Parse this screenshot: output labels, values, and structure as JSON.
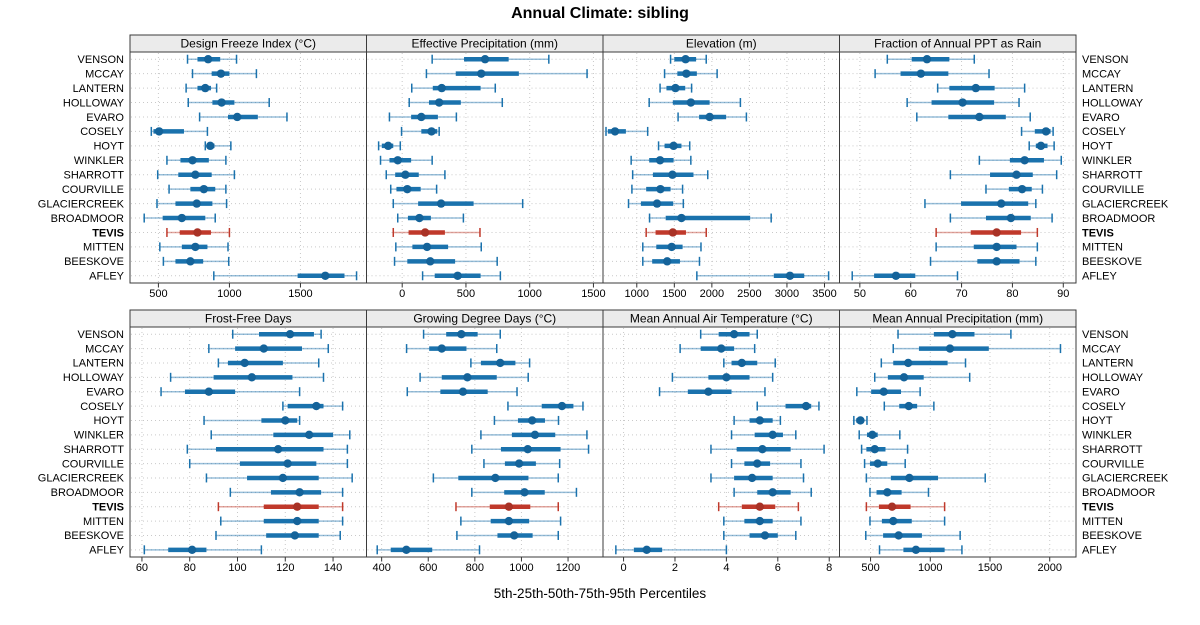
{
  "title": "Annual Climate: sibling",
  "caption": "5th-25th-50th-75th-95th Percentiles",
  "colors": {
    "primary": "#1a72ad",
    "primary_dot": "#14639a",
    "highlight": "#c0392b",
    "highlight_dot": "#a93226",
    "strip_bg": "#ebebeb",
    "panel_border": "#3b3b3b",
    "grid": "#c9c9c9",
    "tick": "#333333",
    "text": "#000000"
  },
  "highlighted_station": "TEVIS",
  "chart_data": {
    "type": "dotplot-percentiles",
    "percentiles": [
      5,
      25,
      50,
      75,
      95
    ],
    "stations": [
      "VENSON",
      "MCCAY",
      "LANTERN",
      "HOLLOWAY",
      "EVARO",
      "COSELY",
      "HOYT",
      "WINKLER",
      "SHARROTT",
      "COURVILLE",
      "GLACIERCREEK",
      "BROADMOOR",
      "TEVIS",
      "MITTEN",
      "BEESKOVE",
      "AFLEY"
    ],
    "panels": [
      {
        "title": "Design Freeze Index (°C)",
        "xlim": [
          300,
          1965
        ],
        "ticks": [
          500,
          1000,
          1500
        ],
        "series": [
          [
            705,
            775,
            850,
            935,
            1050
          ],
          [
            740,
            875,
            940,
            1000,
            1190
          ],
          [
            695,
            775,
            830,
            870,
            910
          ],
          [
            710,
            880,
            945,
            1035,
            1280
          ],
          [
            790,
            990,
            1055,
            1200,
            1405
          ],
          [
            450,
            465,
            505,
            680,
            845
          ],
          [
            830,
            845,
            865,
            895,
            1010
          ],
          [
            560,
            655,
            740,
            855,
            975
          ],
          [
            495,
            640,
            760,
            875,
            1035
          ],
          [
            575,
            725,
            820,
            900,
            975
          ],
          [
            490,
            620,
            770,
            880,
            980
          ],
          [
            400,
            530,
            665,
            830,
            900
          ],
          [
            560,
            650,
            775,
            870,
            1000
          ],
          [
            510,
            665,
            760,
            845,
            990
          ],
          [
            535,
            620,
            725,
            815,
            995
          ],
          [
            890,
            1480,
            1675,
            1810,
            1895
          ]
        ]
      },
      {
        "title": "Effective Precipitation (mm)",
        "xlim": [
          -280,
          1575
        ],
        "ticks": [
          0,
          500,
          1000,
          1500
        ],
        "series": [
          [
            235,
            485,
            650,
            835,
            1150
          ],
          [
            190,
            420,
            620,
            915,
            1450
          ],
          [
            75,
            240,
            310,
            615,
            730
          ],
          [
            55,
            210,
            290,
            460,
            785
          ],
          [
            -100,
            70,
            150,
            280,
            425
          ],
          [
            -5,
            150,
            230,
            275,
            290
          ],
          [
            -185,
            -160,
            -110,
            -70,
            -15
          ],
          [
            -170,
            -100,
            -35,
            70,
            235
          ],
          [
            -125,
            -55,
            25,
            130,
            335
          ],
          [
            -90,
            -45,
            40,
            145,
            270
          ],
          [
            -70,
            125,
            305,
            560,
            945
          ],
          [
            -35,
            45,
            135,
            225,
            480
          ],
          [
            -70,
            50,
            180,
            335,
            610
          ],
          [
            -50,
            80,
            195,
            360,
            620
          ],
          [
            -60,
            40,
            220,
            415,
            745
          ],
          [
            160,
            255,
            435,
            615,
            770
          ]
        ]
      },
      {
        "title": "Elevation (m)",
        "xlim": [
          550,
          3700
        ],
        "ticks": [
          1000,
          1500,
          2000,
          2500,
          3000,
          3500
        ],
        "series": [
          [
            1450,
            1500,
            1650,
            1790,
            1925
          ],
          [
            1370,
            1540,
            1660,
            1800,
            2070
          ],
          [
            1310,
            1395,
            1515,
            1645,
            1730
          ],
          [
            1165,
            1480,
            1720,
            1970,
            2380
          ],
          [
            1550,
            1830,
            1970,
            2190,
            2460
          ],
          [
            590,
            615,
            710,
            855,
            1145
          ],
          [
            1290,
            1370,
            1490,
            1595,
            1705
          ],
          [
            925,
            1165,
            1310,
            1490,
            1720
          ],
          [
            945,
            1215,
            1475,
            1755,
            1945
          ],
          [
            935,
            1125,
            1315,
            1450,
            1610
          ],
          [
            890,
            1055,
            1270,
            1485,
            1620
          ],
          [
            1170,
            1385,
            1595,
            2510,
            2790
          ],
          [
            1125,
            1250,
            1480,
            1655,
            1925
          ],
          [
            1080,
            1260,
            1465,
            1610,
            1855
          ],
          [
            1080,
            1205,
            1405,
            1575,
            1835
          ],
          [
            1800,
            2825,
            3040,
            3230,
            3555
          ]
        ]
      },
      {
        "title": "Fraction of Annual PPT as Rain",
        "xlim": [
          46,
          92.5
        ],
        "ticks": [
          50,
          60,
          70,
          80,
          90
        ],
        "series": [
          [
            55.4,
            60.2,
            63.2,
            67.6,
            72.5
          ],
          [
            53.0,
            58.0,
            62.0,
            67.4,
            75.4
          ],
          [
            65.3,
            67.6,
            72.8,
            76.5,
            82.4
          ],
          [
            59.3,
            64.1,
            70.2,
            76.4,
            81.3
          ],
          [
            61.2,
            67.4,
            73.5,
            78.7,
            83.5
          ],
          [
            81.8,
            84.4,
            86.6,
            87.5,
            88.0
          ],
          [
            83.3,
            84.6,
            85.6,
            86.9,
            88.2
          ],
          [
            73.5,
            79.5,
            82.4,
            86.2,
            89.6
          ],
          [
            67.8,
            75.6,
            80.8,
            84.0,
            88.7
          ],
          [
            74.8,
            79.3,
            81.9,
            83.8,
            85.9
          ],
          [
            62.8,
            69.9,
            77.8,
            83.1,
            84.6
          ],
          [
            67.8,
            74.8,
            79.7,
            83.6,
            87.8
          ],
          [
            65.0,
            71.8,
            76.9,
            81.7,
            84.9
          ],
          [
            65.0,
            72.4,
            76.9,
            80.8,
            84.9
          ],
          [
            63.9,
            73.1,
            76.9,
            81.4,
            84.6
          ],
          [
            48.5,
            52.8,
            57.1,
            60.9,
            69.2
          ]
        ]
      },
      {
        "title": "Frost-Free Days",
        "xlim": [
          55,
          154
        ],
        "ticks": [
          60,
          80,
          100,
          120,
          140
        ],
        "series": [
          [
            98,
            109,
            122,
            132,
            135
          ],
          [
            88,
            99,
            111,
            127,
            138
          ],
          [
            92,
            96,
            103,
            119,
            134
          ],
          [
            72,
            90,
            106,
            123,
            136
          ],
          [
            68,
            78,
            88,
            99,
            126
          ],
          [
            119,
            121,
            133,
            136,
            144
          ],
          [
            86,
            110,
            120,
            125,
            126
          ],
          [
            89,
            115,
            130,
            140,
            147
          ],
          [
            79,
            91,
            117,
            136,
            146
          ],
          [
            80,
            101,
            121,
            133,
            146
          ],
          [
            87,
            104,
            119,
            134,
            148
          ],
          [
            97,
            114,
            126,
            135,
            144
          ],
          [
            92,
            111,
            125,
            134,
            144
          ],
          [
            93,
            111,
            125,
            134,
            144
          ],
          [
            91,
            112,
            124,
            134,
            143
          ],
          [
            61,
            71,
            81,
            87,
            110
          ]
        ]
      },
      {
        "title": "Growing Degree Days (°C)",
        "xlim": [
          335,
          1350
        ],
        "ticks": [
          400,
          600,
          800,
          1000,
          1200
        ],
        "series": [
          [
            580,
            677,
            742,
            812,
            909
          ],
          [
            507,
            604,
            658,
            764,
            894
          ],
          [
            783,
            826,
            909,
            974,
            1035
          ],
          [
            565,
            658,
            768,
            894,
            1029
          ],
          [
            510,
            652,
            749,
            855,
            981
          ],
          [
            942,
            1087,
            1174,
            1223,
            1264
          ],
          [
            884,
            985,
            1046,
            1101,
            1159
          ],
          [
            826,
            959,
            1058,
            1145,
            1281
          ],
          [
            787,
            912,
            1027,
            1168,
            1288
          ],
          [
            839,
            929,
            990,
            1062,
            1164
          ],
          [
            622,
            729,
            888,
            1030,
            1158
          ],
          [
            787,
            926,
            1013,
            1100,
            1236
          ],
          [
            719,
            864,
            946,
            1038,
            1158
          ],
          [
            740,
            868,
            946,
            1033,
            1168
          ],
          [
            723,
            897,
            969,
            1048,
            1158
          ],
          [
            381,
            439,
            506,
            617,
            820
          ]
        ]
      },
      {
        "title": "Mean Annual Air Temperature (°C)",
        "xlim": [
          -0.8,
          8.4
        ],
        "ticks": [
          0,
          2,
          4,
          6,
          8
        ],
        "series": [
          [
            3.0,
            3.7,
            4.3,
            4.9,
            5.2
          ],
          [
            2.2,
            3.0,
            3.8,
            4.3,
            5.1
          ],
          [
            3.9,
            4.2,
            4.6,
            5.2,
            5.9
          ],
          [
            1.9,
            3.3,
            4.0,
            4.9,
            5.8
          ],
          [
            1.4,
            2.5,
            3.3,
            4.2,
            5.5
          ],
          [
            5.2,
            6.3,
            7.1,
            7.3,
            7.6
          ],
          [
            4.3,
            4.9,
            5.3,
            5.8,
            6.1
          ],
          [
            4.2,
            5.1,
            5.8,
            6.2,
            6.7
          ],
          [
            3.4,
            4.4,
            5.4,
            6.5,
            7.8
          ],
          [
            4.2,
            4.7,
            5.2,
            5.7,
            6.9
          ],
          [
            3.4,
            4.3,
            5.0,
            5.8,
            7.0
          ],
          [
            4.3,
            5.2,
            5.8,
            6.5,
            7.3
          ],
          [
            3.7,
            4.6,
            5.3,
            5.9,
            6.8
          ],
          [
            3.9,
            4.7,
            5.3,
            5.8,
            6.9
          ],
          [
            3.9,
            4.9,
            5.5,
            6.0,
            6.7
          ],
          [
            -0.3,
            0.4,
            0.9,
            1.5,
            4.0
          ]
        ]
      },
      {
        "title": "Mean Annual Precipitation (mm)",
        "xlim": [
          240,
          2220
        ],
        "ticks": [
          500,
          1000,
          1500,
          2000
        ],
        "series": [
          [
            730,
            1030,
            1185,
            1370,
            1675
          ],
          [
            690,
            905,
            1165,
            1490,
            2090
          ],
          [
            590,
            690,
            815,
            1145,
            1295
          ],
          [
            535,
            645,
            780,
            945,
            1330
          ],
          [
            385,
            505,
            610,
            755,
            915
          ],
          [
            615,
            740,
            820,
            890,
            1030
          ],
          [
            360,
            380,
            415,
            445,
            470
          ],
          [
            405,
            470,
            515,
            560,
            745
          ],
          [
            425,
            465,
            535,
            625,
            810
          ],
          [
            450,
            495,
            560,
            640,
            790
          ],
          [
            465,
            670,
            825,
            1065,
            1460
          ],
          [
            495,
            550,
            640,
            760,
            985
          ],
          [
            465,
            570,
            680,
            835,
            1120
          ],
          [
            495,
            595,
            690,
            845,
            1120
          ],
          [
            460,
            605,
            735,
            930,
            1250
          ],
          [
            575,
            775,
            880,
            1120,
            1265
          ]
        ]
      }
    ]
  }
}
